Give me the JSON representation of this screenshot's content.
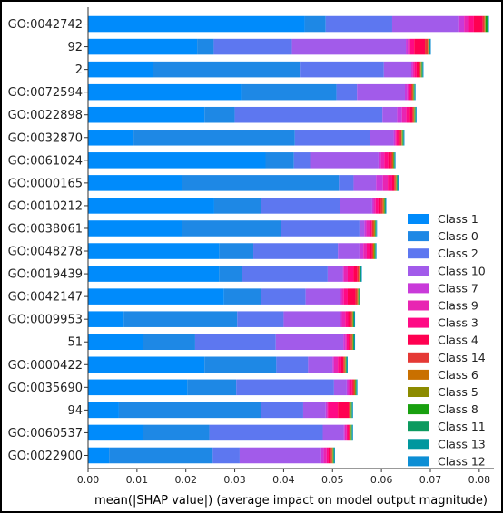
{
  "chart_data": {
    "type": "bar",
    "orientation": "horizontal",
    "stacked": true,
    "title": "",
    "xlabel": "mean(|SHAP value|) (average impact on model output magnitude)",
    "ylabel": "",
    "xlim": [
      0.0,
      0.083
    ],
    "xticks": [
      "0.00",
      "0.01",
      "0.02",
      "0.03",
      "0.04",
      "0.05",
      "0.06",
      "0.07",
      "0.08"
    ],
    "grid": false,
    "legend_position": "lower-right",
    "categories": [
      "GO:0042742",
      "92",
      "2",
      "GO:0072594",
      "GO:0022898",
      "GO:0032870",
      "GO:0061024",
      "GO:0000165",
      "GO:0010212",
      "GO:0038061",
      "GO:0048278",
      "GO:0019439",
      "GO:0042147",
      "GO:0009953",
      "51",
      "GO:0000422",
      "GO:0035690",
      "94",
      "GO:0060537",
      "GO:0022900"
    ],
    "series": [
      {
        "name": "Class 1",
        "color": "#008bfb",
        "values": [
          0.0443,
          0.0223,
          0.0133,
          0.0313,
          0.0238,
          0.0093,
          0.0363,
          0.0193,
          0.0258,
          0.0193,
          0.0268,
          0.0268,
          0.0278,
          0.0073,
          0.0113,
          0.0238,
          0.0203,
          0.0063,
          0.0113,
          0.0043
        ]
      },
      {
        "name": "Class 0",
        "color": "#1e88e5",
        "values": [
          0.0043,
          0.0034,
          0.03,
          0.0195,
          0.0062,
          0.033,
          0.0058,
          0.032,
          0.0095,
          0.0202,
          0.007,
          0.0046,
          0.0075,
          0.0232,
          0.0106,
          0.0147,
          0.01,
          0.029,
          0.0135,
          0.0212
        ]
      },
      {
        "name": "Class 2",
        "color": "#5d77f0",
        "values": [
          0.0136,
          0.016,
          0.0172,
          0.0042,
          0.0302,
          0.0154,
          0.0033,
          0.003,
          0.0162,
          0.016,
          0.0173,
          0.0176,
          0.0092,
          0.0095,
          0.0165,
          0.0065,
          0.02,
          0.0087,
          0.0232,
          0.0055
        ]
      },
      {
        "name": "Class 10",
        "color": "#a25bea",
        "values": [
          0.0135,
          0.0233,
          0.0056,
          0.0098,
          0.003,
          0.0048,
          0.014,
          0.0046,
          0.0066,
          0.001,
          0.0044,
          0.0031,
          0.0071,
          0.0116,
          0.0138,
          0.005,
          0.0026,
          0.0046,
          0.0043,
          0.0165
        ]
      },
      {
        "name": "Class 7",
        "color": "#c93ad9",
        "values": [
          0.0012,
          0.0004,
          0.0003,
          0.0005,
          0.001,
          0.0003,
          0.0005,
          0.0014,
          0.0003,
          0.0004,
          0.0008,
          0.0002,
          0.0003,
          0.0003,
          0.0004,
          0.0003,
          0.0003,
          0.0003,
          0.0002,
          0.0007
        ]
      },
      {
        "name": "Class 9",
        "color": "#e825b2",
        "values": [
          0.001,
          0.0005,
          0.0003,
          0.0004,
          0.0009,
          0.0002,
          0.0007,
          0.001,
          0.0004,
          0.0007,
          0.0007,
          0.0008,
          0.0004,
          0.0007,
          0.0003,
          0.0008,
          0.0003,
          0.0002,
          0.0004,
          0.0006
        ]
      },
      {
        "name": "Class 3",
        "color": "#ff0a85",
        "values": [
          0.001,
          0.0008,
          0.0005,
          0.0003,
          0.0007,
          0.0004,
          0.0008,
          0.0009,
          0.0006,
          0.0004,
          0.0007,
          0.0012,
          0.0008,
          0.0006,
          0.0004,
          0.0007,
          0.0005,
          0.002,
          0.0003,
          0.0004
        ]
      },
      {
        "name": "Class 4",
        "color": "#ff0051",
        "values": [
          0.0018,
          0.0022,
          0.0005,
          0.0001,
          0.0005,
          0.0004,
          0.0006,
          0.0004,
          0.0005,
          0.0001,
          0.0004,
          0.0008,
          0.0016,
          0.0004,
          0.0004,
          0.0004,
          0.0002,
          0.0022,
          0.0002,
          0.0004
        ]
      },
      {
        "name": "Class 14",
        "color": "#e53935",
        "values": [
          0.0004,
          0.0006,
          0.0003,
          0.0003,
          0.0003,
          0.0003,
          0.0003,
          0.0003,
          0.0004,
          0.0003,
          0.0002,
          0.0003,
          0.0004,
          0.0004,
          0.0003,
          0.0003,
          0.0003,
          0.0003,
          0.0002,
          0.0003
        ]
      },
      {
        "name": "Class 6",
        "color": "#c97000",
        "values": [
          0.0001,
          0.0001,
          0.0001,
          0.0001,
          0.0001,
          0.0001,
          0.0001,
          0.0001,
          0.0002,
          0.0002,
          0.0002,
          0.0001,
          0.0001,
          0.0001,
          0.0001,
          0.0001,
          0.0001,
          0.0001,
          0.0001,
          0.0001
        ]
      },
      {
        "name": "Class 5",
        "color": "#8c8b00",
        "values": [
          0.0001,
          0.0001,
          0.0001,
          0.0001,
          0.0001,
          0.0001,
          0.0001,
          0.0001,
          0.0001,
          0.0001,
          0.0001,
          0.0001,
          0.0001,
          0.0001,
          0.0001,
          0.0001,
          0.0001,
          0.0001,
          0.0001,
          0.0001
        ]
      },
      {
        "name": "Class 8",
        "color": "#18a00f",
        "values": [
          0.0003,
          0.0001,
          0.0001,
          0.0001,
          0.0001,
          0.0001,
          0.0001,
          0.0001,
          0.0001,
          0.0001,
          0.0001,
          0.0001,
          0.0001,
          0.0001,
          0.0001,
          0.0001,
          0.0001,
          0.0001,
          0.0001,
          0.0001
        ]
      },
      {
        "name": "Class 11",
        "color": "#0c9a5f",
        "values": [
          0.0002,
          0.0001,
          0.0001,
          0.0001,
          0.0001,
          0.0001,
          0.0001,
          0.0001,
          0.0001,
          0.0001,
          0.0001,
          0.0001,
          0.0001,
          0.0001,
          0.0001,
          0.0001,
          0.0001,
          0.0001,
          0.0001,
          0.0001
        ]
      },
      {
        "name": "Class 13",
        "color": "#00979e",
        "values": [
          0.0001,
          0.0001,
          0.0001,
          0.0001,
          0.0001,
          0.0001,
          0.0001,
          0.0001,
          0.0001,
          0.0001,
          0.0001,
          0.0001,
          0.0001,
          0.0001,
          0.0001,
          0.0001,
          0.0001,
          0.0001,
          0.0001,
          0.0001
        ]
      },
      {
        "name": "Class 12",
        "color": "#0d8ed4",
        "values": [
          0.0001,
          0.0001,
          0.0001,
          0.0001,
          0.0001,
          0.0001,
          0.0001,
          0.0001,
          0.0001,
          0.0001,
          0.0001,
          0.0001,
          0.0001,
          0.0001,
          0.0001,
          0.0001,
          0.0001,
          0.0001,
          0.0001,
          0.0001
        ]
      }
    ]
  }
}
